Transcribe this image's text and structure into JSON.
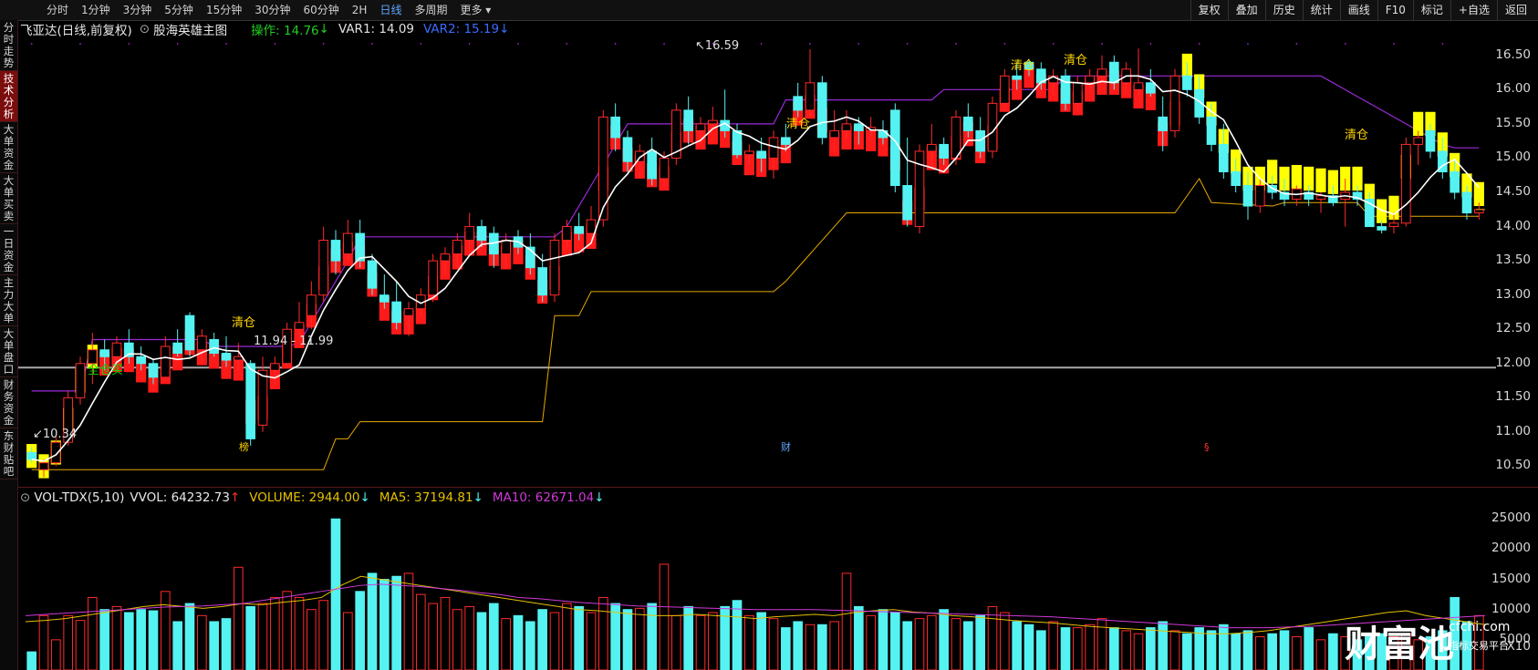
{
  "toolbar": {
    "timeframes": [
      "分时",
      "1分钟",
      "3分钟",
      "5分钟",
      "15分钟",
      "30分钟",
      "60分钟",
      "2H",
      "日线",
      "多周期",
      "更多 ▾"
    ],
    "active_index": 8,
    "right_buttons": [
      "复权",
      "叠加",
      "历史",
      "统计",
      "画线",
      "F10",
      "标记",
      "+自选",
      "返回"
    ]
  },
  "sidebar": {
    "tabs": [
      "分时走势",
      "技术分析",
      "大单资金",
      "大单买卖",
      "一日资金",
      "主力大单",
      "大单盘口",
      "财务资金",
      "东财贴吧"
    ],
    "active_index": 1
  },
  "header": {
    "stock": "飞亚达(日线,前复权)",
    "indicator": "股海英雄主图",
    "op_label": "操作: 14.76",
    "var1": "VAR1: 14.09",
    "var2": "VAR2: 15.19"
  },
  "volume_header": {
    "name": "VOL-TDX(5,10)",
    "vvol": "VVOL: 64232.73",
    "volume": "VOLUME: 2944.00",
    "ma5": "MA5: 37194.81",
    "ma10": "MA10: 62671.04"
  },
  "colors": {
    "up": "#ff2a2a",
    "down": "#55f2f2",
    "ma5": "#ffffff",
    "var1": "#9a2ad8",
    "var2": "#e6a800",
    "yellow_band": "#ffff00",
    "signal_text": "#ffd400",
    "buy_text": "#00dd00"
  },
  "chart_data": {
    "type": "candlestick",
    "y_axis_price": [
      "16.50",
      "16.00",
      "15.50",
      "15.00",
      "14.50",
      "14.00",
      "13.50",
      "13.00",
      "12.50",
      "12.00",
      "11.50",
      "11.00",
      "10.50"
    ],
    "y_axis_volume": [
      "25000",
      "20000",
      "15000",
      "10000",
      "5000",
      "X10"
    ],
    "ylim": [
      10.2,
      16.75
    ],
    "price_line_label": "11.94 - 11.99",
    "high_label": "16.59",
    "low_label": "10.34",
    "signals": [
      "全仓买",
      "清仓",
      "清仓",
      "清仓",
      "清仓",
      "清仓"
    ],
    "event_markers": [
      "榜",
      "财",
      "§"
    ],
    "candles": [
      {
        "o": 10.7,
        "h": 10.78,
        "l": 10.55,
        "c": 10.6
      },
      {
        "o": 10.45,
        "h": 10.6,
        "l": 10.34,
        "c": 10.55
      },
      {
        "o": 10.55,
        "h": 10.95,
        "l": 10.5,
        "c": 10.85
      },
      {
        "o": 10.85,
        "h": 11.6,
        "l": 10.8,
        "c": 11.5
      },
      {
        "o": 11.5,
        "h": 12.1,
        "l": 11.4,
        "c": 12.0
      },
      {
        "o": 12.0,
        "h": 12.45,
        "l": 11.7,
        "c": 12.2
      },
      {
        "o": 12.2,
        "h": 12.35,
        "l": 11.9,
        "c": 12.1
      },
      {
        "o": 12.1,
        "h": 12.4,
        "l": 12.0,
        "c": 12.3
      },
      {
        "o": 12.3,
        "h": 12.5,
        "l": 12.0,
        "c": 12.1
      },
      {
        "o": 12.1,
        "h": 12.25,
        "l": 11.9,
        "c": 12.0
      },
      {
        "o": 12.0,
        "h": 12.05,
        "l": 11.7,
        "c": 11.8
      },
      {
        "o": 11.8,
        "h": 12.4,
        "l": 11.75,
        "c": 12.25
      },
      {
        "o": 12.3,
        "h": 12.5,
        "l": 12.1,
        "c": 12.15
      },
      {
        "o": 12.7,
        "h": 12.75,
        "l": 12.1,
        "c": 12.2
      },
      {
        "o": 12.2,
        "h": 12.5,
        "l": 12.0,
        "c": 12.4
      },
      {
        "o": 12.35,
        "h": 12.45,
        "l": 12.1,
        "c": 12.15
      },
      {
        "o": 12.15,
        "h": 12.4,
        "l": 11.95,
        "c": 12.05
      },
      {
        "o": 12.05,
        "h": 12.3,
        "l": 11.9,
        "c": 12.1
      },
      {
        "o": 12.0,
        "h": 12.05,
        "l": 10.8,
        "c": 10.9
      },
      {
        "o": 11.1,
        "h": 12.1,
        "l": 11.0,
        "c": 11.9
      },
      {
        "o": 11.9,
        "h": 12.1,
        "l": 11.7,
        "c": 12.0
      },
      {
        "o": 12.0,
        "h": 12.6,
        "l": 11.95,
        "c": 12.5
      },
      {
        "o": 12.5,
        "h": 12.9,
        "l": 12.4,
        "c": 12.6
      },
      {
        "o": 12.7,
        "h": 13.2,
        "l": 12.5,
        "c": 13.0
      },
      {
        "o": 13.0,
        "h": 14.0,
        "l": 12.9,
        "c": 13.8
      },
      {
        "o": 13.8,
        "h": 13.95,
        "l": 13.3,
        "c": 13.5
      },
      {
        "o": 13.6,
        "h": 14.1,
        "l": 13.5,
        "c": 13.9
      },
      {
        "o": 13.9,
        "h": 14.1,
        "l": 13.4,
        "c": 13.5
      },
      {
        "o": 13.5,
        "h": 13.6,
        "l": 13.0,
        "c": 13.1
      },
      {
        "o": 13.0,
        "h": 13.3,
        "l": 12.8,
        "c": 12.9
      },
      {
        "o": 12.9,
        "h": 13.2,
        "l": 12.5,
        "c": 12.6
      },
      {
        "o": 12.7,
        "h": 12.9,
        "l": 12.4,
        "c": 12.8
      },
      {
        "o": 12.8,
        "h": 13.1,
        "l": 12.7,
        "c": 13.0
      },
      {
        "o": 13.0,
        "h": 13.6,
        "l": 12.9,
        "c": 13.5
      },
      {
        "o": 13.5,
        "h": 13.7,
        "l": 13.3,
        "c": 13.6
      },
      {
        "o": 13.6,
        "h": 13.9,
        "l": 13.4,
        "c": 13.8
      },
      {
        "o": 13.8,
        "h": 14.2,
        "l": 13.6,
        "c": 14.0
      },
      {
        "o": 14.0,
        "h": 14.1,
        "l": 13.7,
        "c": 13.8
      },
      {
        "o": 13.9,
        "h": 14.0,
        "l": 13.4,
        "c": 13.6
      },
      {
        "o": 13.6,
        "h": 13.9,
        "l": 13.4,
        "c": 13.8
      },
      {
        "o": 13.85,
        "h": 13.95,
        "l": 13.6,
        "c": 13.7
      },
      {
        "o": 13.7,
        "h": 13.9,
        "l": 13.3,
        "c": 13.4
      },
      {
        "o": 13.4,
        "h": 13.6,
        "l": 12.9,
        "c": 13.0
      },
      {
        "o": 13.0,
        "h": 13.9,
        "l": 12.9,
        "c": 13.8
      },
      {
        "o": 13.8,
        "h": 14.1,
        "l": 13.7,
        "c": 14.0
      },
      {
        "o": 14.0,
        "h": 14.2,
        "l": 13.8,
        "c": 13.9
      },
      {
        "o": 13.9,
        "h": 14.3,
        "l": 13.8,
        "c": 14.1
      },
      {
        "o": 14.1,
        "h": 15.7,
        "l": 14.0,
        "c": 15.6
      },
      {
        "o": 15.6,
        "h": 15.8,
        "l": 15.1,
        "c": 15.3
      },
      {
        "o": 15.3,
        "h": 15.4,
        "l": 14.8,
        "c": 14.95
      },
      {
        "o": 14.95,
        "h": 15.2,
        "l": 14.7,
        "c": 15.1
      },
      {
        "o": 15.1,
        "h": 15.3,
        "l": 14.6,
        "c": 14.7
      },
      {
        "o": 14.7,
        "h": 15.1,
        "l": 14.6,
        "c": 15.0
      },
      {
        "o": 15.0,
        "h": 15.8,
        "l": 14.9,
        "c": 15.7
      },
      {
        "o": 15.7,
        "h": 15.9,
        "l": 15.2,
        "c": 15.4
      },
      {
        "o": 15.4,
        "h": 15.6,
        "l": 15.2,
        "c": 15.5
      },
      {
        "o": 15.5,
        "h": 15.75,
        "l": 15.4,
        "c": 15.55
      },
      {
        "o": 15.55,
        "h": 16.0,
        "l": 15.3,
        "c": 15.4
      },
      {
        "o": 15.4,
        "h": 15.5,
        "l": 15.0,
        "c": 15.05
      },
      {
        "o": 15.05,
        "h": 15.2,
        "l": 14.9,
        "c": 15.1
      },
      {
        "o": 15.1,
        "h": 15.3,
        "l": 14.8,
        "c": 15.0
      },
      {
        "o": 15.0,
        "h": 15.4,
        "l": 14.7,
        "c": 15.3
      },
      {
        "o": 15.3,
        "h": 15.5,
        "l": 15.1,
        "c": 15.2
      },
      {
        "o": 15.9,
        "h": 16.1,
        "l": 15.6,
        "c": 15.7
      },
      {
        "o": 15.7,
        "h": 16.59,
        "l": 15.6,
        "c": 16.1
      },
      {
        "o": 16.1,
        "h": 16.2,
        "l": 15.2,
        "c": 15.3
      },
      {
        "o": 15.3,
        "h": 15.7,
        "l": 15.1,
        "c": 15.4
      },
      {
        "o": 15.4,
        "h": 15.7,
        "l": 15.3,
        "c": 15.5
      },
      {
        "o": 15.5,
        "h": 15.6,
        "l": 15.2,
        "c": 15.4
      },
      {
        "o": 15.4,
        "h": 15.6,
        "l": 15.3,
        "c": 15.45
      },
      {
        "o": 15.4,
        "h": 15.55,
        "l": 15.2,
        "c": 15.3
      },
      {
        "o": 15.7,
        "h": 15.8,
        "l": 14.5,
        "c": 14.6
      },
      {
        "o": 14.6,
        "h": 15.3,
        "l": 14.0,
        "c": 14.1
      },
      {
        "o": 14.0,
        "h": 15.2,
        "l": 13.9,
        "c": 15.1
      },
      {
        "o": 15.1,
        "h": 15.5,
        "l": 14.9,
        "c": 15.2
      },
      {
        "o": 15.2,
        "h": 15.3,
        "l": 14.9,
        "c": 15.0
      },
      {
        "o": 15.0,
        "h": 15.7,
        "l": 14.9,
        "c": 15.6
      },
      {
        "o": 15.6,
        "h": 15.8,
        "l": 15.3,
        "c": 15.4
      },
      {
        "o": 15.4,
        "h": 15.6,
        "l": 15.0,
        "c": 15.1
      },
      {
        "o": 15.1,
        "h": 15.9,
        "l": 15.0,
        "c": 15.8
      },
      {
        "o": 15.8,
        "h": 16.3,
        "l": 15.7,
        "c": 16.2
      },
      {
        "o": 16.2,
        "h": 16.4,
        "l": 16.0,
        "c": 16.15
      },
      {
        "o": 16.4,
        "h": 16.45,
        "l": 16.2,
        "c": 16.3
      },
      {
        "o": 16.3,
        "h": 16.4,
        "l": 16.0,
        "c": 16.1
      },
      {
        "o": 16.1,
        "h": 16.3,
        "l": 15.9,
        "c": 16.2
      },
      {
        "o": 16.2,
        "h": 16.3,
        "l": 15.7,
        "c": 15.8
      },
      {
        "o": 15.8,
        "h": 16.2,
        "l": 15.7,
        "c": 16.1
      },
      {
        "o": 16.1,
        "h": 16.3,
        "l": 16.0,
        "c": 16.2
      },
      {
        "o": 16.2,
        "h": 16.5,
        "l": 16.1,
        "c": 16.3
      },
      {
        "o": 16.4,
        "h": 16.5,
        "l": 16.0,
        "c": 16.1
      },
      {
        "o": 16.1,
        "h": 16.4,
        "l": 16.0,
        "c": 16.3
      },
      {
        "o": 16.0,
        "h": 16.6,
        "l": 15.9,
        "c": 16.1
      },
      {
        "o": 16.1,
        "h": 16.3,
        "l": 15.9,
        "c": 15.95
      },
      {
        "o": 15.6,
        "h": 15.9,
        "l": 15.1,
        "c": 15.4
      },
      {
        "o": 15.4,
        "h": 16.3,
        "l": 15.3,
        "c": 16.2
      },
      {
        "o": 16.2,
        "h": 16.4,
        "l": 15.9,
        "c": 16.0
      },
      {
        "o": 16.0,
        "h": 16.2,
        "l": 15.5,
        "c": 15.6
      },
      {
        "o": 15.6,
        "h": 15.8,
        "l": 15.1,
        "c": 15.2
      },
      {
        "o": 15.2,
        "h": 15.5,
        "l": 14.7,
        "c": 14.8
      },
      {
        "o": 14.8,
        "h": 15.0,
        "l": 14.5,
        "c": 14.6
      },
      {
        "o": 14.6,
        "h": 14.8,
        "l": 14.1,
        "c": 14.3
      },
      {
        "o": 14.3,
        "h": 14.7,
        "l": 14.2,
        "c": 14.6
      },
      {
        "o": 14.6,
        "h": 14.75,
        "l": 14.4,
        "c": 14.5
      },
      {
        "o": 14.5,
        "h": 14.7,
        "l": 14.3,
        "c": 14.4
      },
      {
        "o": 14.4,
        "h": 14.6,
        "l": 14.3,
        "c": 14.55
      },
      {
        "o": 14.5,
        "h": 14.6,
        "l": 14.3,
        "c": 14.4
      },
      {
        "o": 14.4,
        "h": 14.5,
        "l": 14.2,
        "c": 14.45
      },
      {
        "o": 14.45,
        "h": 14.6,
        "l": 14.3,
        "c": 14.35
      },
      {
        "o": 14.4,
        "h": 14.7,
        "l": 14.0,
        "c": 14.5
      },
      {
        "o": 14.5,
        "h": 14.6,
        "l": 14.3,
        "c": 14.4
      },
      {
        "o": 14.4,
        "h": 14.5,
        "l": 14.0,
        "c": 14.0
      },
      {
        "o": 14.0,
        "h": 14.1,
        "l": 13.9,
        "c": 13.95
      },
      {
        "o": 14.0,
        "h": 14.2,
        "l": 13.9,
        "c": 14.05
      },
      {
        "o": 14.05,
        "h": 15.3,
        "l": 14.0,
        "c": 15.2
      },
      {
        "o": 15.2,
        "h": 15.4,
        "l": 14.9,
        "c": 15.3
      },
      {
        "o": 15.4,
        "h": 15.5,
        "l": 15.0,
        "c": 15.1
      },
      {
        "o": 15.1,
        "h": 15.3,
        "l": 14.7,
        "c": 14.8
      },
      {
        "o": 14.8,
        "h": 15.0,
        "l": 14.4,
        "c": 14.5
      },
      {
        "o": 14.5,
        "h": 14.6,
        "l": 14.1,
        "c": 14.2
      },
      {
        "o": 14.2,
        "h": 14.35,
        "l": 14.1,
        "c": 14.25
      }
    ],
    "volume_bars": [
      3000,
      9000,
      5000,
      9000,
      8200,
      12000,
      10000,
      10500,
      9500,
      10000,
      9800,
      13000,
      8000,
      11000,
      9000,
      8000,
      8500,
      17000,
      10500,
      11000,
      12000,
      13000,
      12000,
      10000,
      11500,
      25000,
      9500,
      13000,
      16000,
      15000,
      15500,
      16000,
      12500,
      11000,
      12000,
      10000,
      10500,
      9500,
      11000,
      8500,
      9000,
      8000,
      10000,
      9500,
      11000,
      10500,
      9500,
      12000,
      11000,
      10000,
      10200,
      11000,
      17500,
      9000,
      10500,
      9000,
      9500,
      10500,
      11500,
      9000,
      9500,
      8500,
      7000,
      8000,
      7500,
      7500,
      8000,
      16000,
      10500,
      9000,
      10000,
      9500,
      8000,
      8500,
      9000,
      10000,
      8500,
      8000,
      9000,
      10500,
      9500,
      8000,
      7500,
      6500,
      8000,
      7000,
      7000,
      7500,
      8500,
      7000,
      6500,
      6000,
      7000,
      8000,
      6500,
      6000,
      7000,
      6500,
      7500,
      6000,
      6500,
      5500,
      6000,
      6500,
      5500,
      7000,
      5000,
      6000,
      5500,
      5000,
      5500,
      6000,
      5500,
      6000,
      5000,
      5500,
      6500,
      12000,
      8000,
      9000,
      9500,
      8500,
      6500,
      6000,
      5500,
      4000,
      3000
    ],
    "ma5_line": [
      8000,
      8200,
      8500,
      9000,
      9500,
      10000,
      10500,
      10800,
      10500,
      10200,
      10500,
      11000,
      10800,
      11200,
      11500,
      12000,
      14000,
      15500,
      15000,
      14500,
      14000,
      13500,
      13000,
      12500,
      12000,
      11500,
      11000,
      10500,
      10000,
      9800,
      9500,
      9200,
      9000,
      9000,
      9200,
      9000,
      8800,
      8500,
      8800,
      9000,
      9200,
      9000,
      9500,
      9800,
      10000,
      9600,
      9400,
      9000,
      8800,
      8500,
      8200,
      8000,
      7800,
      7500,
      7200,
      7000,
      6800,
      6600,
      6400,
      6200,
      6000,
      6000,
      6200,
      6500,
      7000,
      7500,
      8000,
      8500,
      9000,
      9500,
      9800,
      9000,
      8500,
      8000,
      7500
    ],
    "ma10_line": [
      9000,
      9200,
      9400,
      9600,
      9800,
      10000,
      10200,
      10400,
      10500,
      10600,
      10800,
      11000,
      11500,
      12000,
      12500,
      13000,
      13500,
      14000,
      14200,
      14000,
      13800,
      13500,
      13200,
      12800,
      12500,
      12000,
      11800,
      11500,
      11200,
      11000,
      10800,
      10600,
      10500,
      10400,
      10300,
      10200,
      10100,
      10000,
      10000,
      10000,
      10000,
      9900,
      9800,
      9700,
      9600,
      9500,
      9400,
      9300,
      9200,
      9100,
      9000,
      8900,
      8800,
      8600,
      8400,
      8200,
      8000,
      7800,
      7600,
      7400,
      7200,
      7000,
      7000,
      7000,
      7100,
      7200,
      7400,
      7600,
      7800,
      8000,
      8200,
      8400,
      8600,
      8800,
      9000
    ]
  },
  "logo": {
    "main": "财富池",
    "domain": "cfchi.com",
    "sub": "指标交易平台"
  }
}
